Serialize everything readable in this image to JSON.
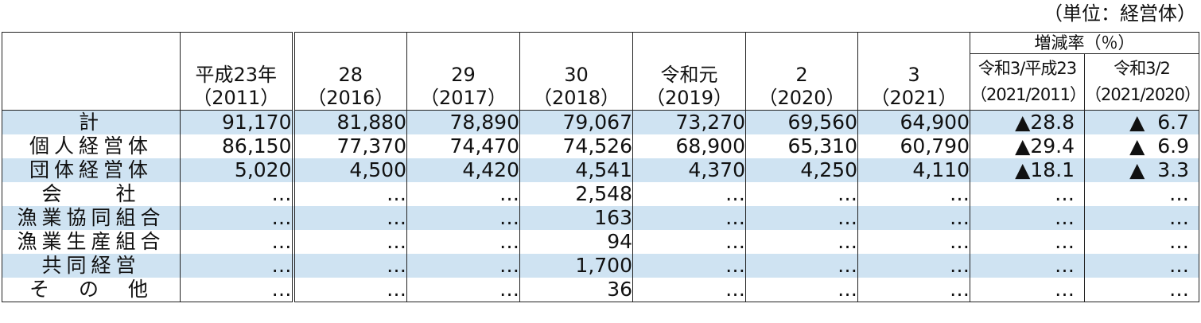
{
  "unit_label": "（単位：経営体）",
  "header": {
    "years": [
      {
        "line1": "平成23年",
        "line2": "（2011）"
      },
      {
        "line1": "28",
        "line2": "（2016）"
      },
      {
        "line1": "29",
        "line2": "（2017）"
      },
      {
        "line1": "30",
        "line2": "（2018）"
      },
      {
        "line1": "令和元",
        "line2": "（2019）"
      },
      {
        "line1": "2",
        "line2": "（2020）"
      },
      {
        "line1": "3",
        "line2": "（2021）"
      }
    ],
    "rate_group": "増減率（％）",
    "rate_cols": [
      {
        "line1": "令和3/平成23",
        "line2": "（2021/2011）"
      },
      {
        "line1": "令和3/2",
        "line2": "（2021/2020）"
      }
    ]
  },
  "rows": [
    {
      "label": "計",
      "shade": true,
      "values": [
        "91,170",
        "81,880",
        "78,890",
        "79,067",
        "73,270",
        "69,560",
        "64,900"
      ],
      "rates": [
        "▲28.8",
        "▲  6.7"
      ]
    },
    {
      "label": "個人経営体",
      "shade": false,
      "values": [
        "86,150",
        "77,370",
        "74,470",
        "74,526",
        "68,900",
        "65,310",
        "60,790"
      ],
      "rates": [
        "▲29.4",
        "▲  6.9"
      ]
    },
    {
      "label": "団体経営体",
      "shade": true,
      "values": [
        "5,020",
        "4,500",
        "4,420",
        "4,541",
        "4,370",
        "4,250",
        "4,110"
      ],
      "rates": [
        "▲18.1",
        "▲  3.3"
      ]
    },
    {
      "label": "会　　社",
      "shade": false,
      "values": [
        "…",
        "…",
        "…",
        "2,548",
        "…",
        "…",
        "…"
      ],
      "rates": [
        "…",
        "…"
      ]
    },
    {
      "label": "漁業協同組合",
      "shade": true,
      "values": [
        "…",
        "…",
        "…",
        "163",
        "…",
        "…",
        "…"
      ],
      "rates": [
        "…",
        "…"
      ]
    },
    {
      "label": "漁業生産組合",
      "shade": false,
      "values": [
        "…",
        "…",
        "…",
        "94",
        "…",
        "…",
        "…"
      ],
      "rates": [
        "…",
        "…"
      ]
    },
    {
      "label": "共同経営",
      "shade": true,
      "values": [
        "…",
        "…",
        "…",
        "1,700",
        "…",
        "…",
        "…"
      ],
      "rates": [
        "…",
        "…"
      ]
    },
    {
      "label": "そ　の　他",
      "shade": false,
      "values": [
        "…",
        "…",
        "…",
        "36",
        "…",
        "…",
        "…"
      ],
      "rates": [
        "…",
        "…"
      ]
    }
  ]
}
